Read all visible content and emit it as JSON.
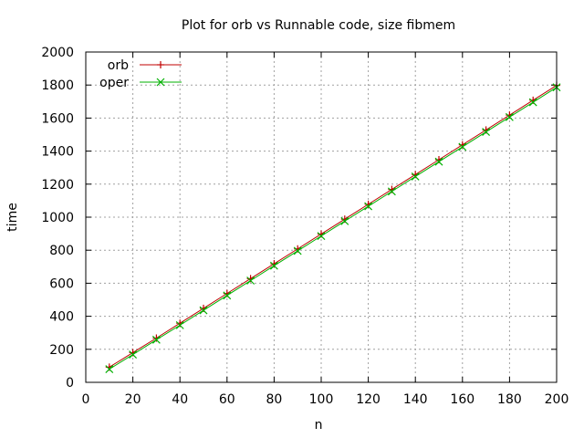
{
  "chart_data": {
    "type": "line",
    "title": "Plot for orb vs Runnable code, size fibmem",
    "xlabel": "n",
    "ylabel": "time",
    "xlim": [
      0,
      200
    ],
    "ylim": [
      0,
      2000
    ],
    "xticks": [
      0,
      20,
      40,
      60,
      80,
      100,
      120,
      140,
      160,
      180,
      200
    ],
    "yticks": [
      0,
      200,
      400,
      600,
      800,
      1000,
      1200,
      1400,
      1600,
      1800,
      2000
    ],
    "grid": true,
    "legend_position": "top-left",
    "x": [
      10,
      20,
      30,
      40,
      50,
      60,
      70,
      80,
      90,
      100,
      110,
      120,
      130,
      140,
      150,
      160,
      170,
      180,
      190,
      200
    ],
    "series": [
      {
        "name": "orb",
        "marker": "plus",
        "color": "#c00000",
        "values": [
          92,
          180,
          268,
          358,
          448,
          538,
          628,
          718,
          808,
          898,
          988,
          1078,
          1168,
          1258,
          1348,
          1438,
          1528,
          1618,
          1708,
          1798
        ]
      },
      {
        "name": "oper",
        "marker": "x",
        "color": "#00b000",
        "values": [
          80,
          168,
          258,
          346,
          436,
          526,
          616,
          706,
          796,
          886,
          976,
          1066,
          1156,
          1246,
          1336,
          1426,
          1516,
          1606,
          1696,
          1786
        ]
      }
    ]
  }
}
